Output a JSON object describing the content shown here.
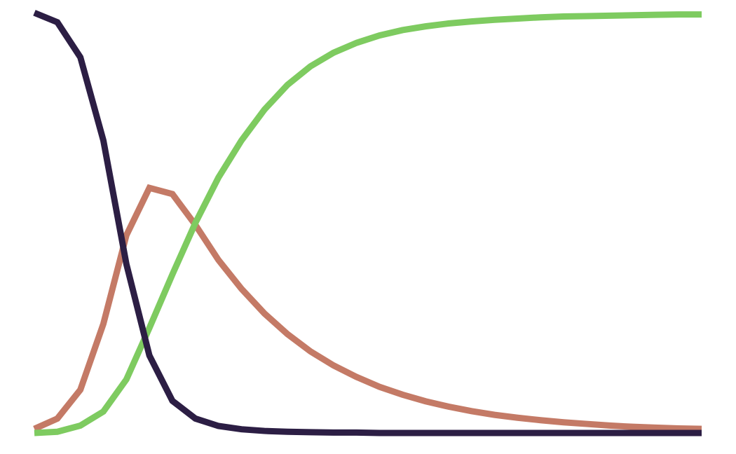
{
  "chart_data": {
    "type": "line",
    "title": "",
    "xlabel": "",
    "ylabel": "",
    "grid": false,
    "legend": "none",
    "axes_visible": false,
    "xlim": [
      0,
      29
    ],
    "ylim": [
      0,
      1
    ],
    "x": [
      0,
      1,
      2,
      3,
      4,
      5,
      6,
      7,
      8,
      9,
      10,
      11,
      12,
      13,
      14,
      15,
      16,
      17,
      18,
      19,
      20,
      21,
      22,
      23,
      24,
      25,
      26,
      27,
      28,
      29
    ],
    "series": [
      {
        "color": "#c47a66",
        "values": [
          0.01,
          0.035,
          0.105,
          0.265,
          0.48,
          0.595,
          0.58,
          0.505,
          0.42,
          0.35,
          0.29,
          0.24,
          0.198,
          0.164,
          0.136,
          0.112,
          0.093,
          0.077,
          0.064,
          0.053,
          0.044,
          0.037,
          0.031,
          0.026,
          0.022,
          0.018,
          0.015,
          0.013,
          0.011,
          0.01
        ]
      },
      {
        "color": "#7ecb60",
        "values": [
          0.0,
          0.003,
          0.018,
          0.052,
          0.13,
          0.255,
          0.385,
          0.51,
          0.62,
          0.71,
          0.785,
          0.845,
          0.89,
          0.923,
          0.947,
          0.965,
          0.978,
          0.987,
          0.994,
          0.999,
          1.003,
          1.006,
          1.009,
          1.011,
          1.012,
          1.013,
          1.014,
          1.015,
          1.016,
          1.016
        ]
      },
      {
        "color": "#2c1e44",
        "values": [
          1.02,
          0.997,
          0.912,
          0.71,
          0.41,
          0.188,
          0.078,
          0.035,
          0.017,
          0.009,
          0.005,
          0.003,
          0.002,
          0.001,
          0.001,
          0.0,
          0.0,
          0.0,
          0.0,
          0.0,
          0.0,
          0.0,
          0.0,
          0.0,
          0.0,
          0.0,
          0.0,
          0.0,
          0.0,
          0.0
        ]
      }
    ]
  }
}
